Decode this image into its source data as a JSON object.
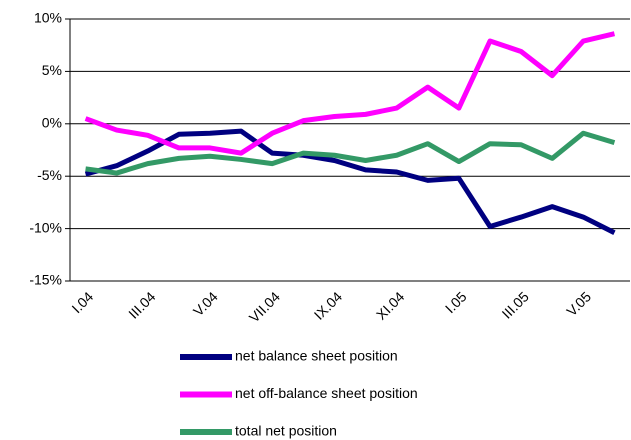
{
  "chart_data": {
    "type": "line",
    "categories": [
      "I.04",
      null,
      "III.04",
      null,
      "V.04",
      null,
      "VII.04",
      null,
      "IX.04",
      null,
      "XI.04",
      null,
      "I.05",
      null,
      "III.05",
      null,
      "V.05",
      null
    ],
    "series": [
      {
        "name": "net balance sheet position",
        "color": "#000080",
        "values": [
          -4.8,
          -4.0,
          -2.6,
          -1.0,
          -0.9,
          -0.7,
          -2.8,
          -3.0,
          -3.5,
          -4.4,
          -4.6,
          -5.4,
          -5.2,
          -9.8,
          -8.9,
          -7.9,
          -8.9,
          -10.4
        ]
      },
      {
        "name": "net off-balance sheet position",
        "color": "#ff00ff",
        "values": [
          0.5,
          -0.6,
          -1.1,
          -2.3,
          -2.3,
          -2.8,
          -0.9,
          0.3,
          0.7,
          0.9,
          1.5,
          3.5,
          1.5,
          7.9,
          6.9,
          4.6,
          7.9,
          8.6
        ]
      },
      {
        "name": "total net position",
        "color": "#339966",
        "values": [
          -4.3,
          -4.7,
          -3.8,
          -3.3,
          -3.1,
          -3.4,
          -3.8,
          -2.8,
          -3.0,
          -3.5,
          -3.0,
          -1.9,
          -3.6,
          -1.9,
          -2.0,
          -3.3,
          -0.9,
          -1.8
        ]
      }
    ],
    "ylim": [
      -15,
      10
    ],
    "yticks": [
      {
        "value": -15,
        "label": "-15%"
      },
      {
        "value": -10,
        "label": "-10%"
      },
      {
        "value": -5,
        "label": "-5%"
      },
      {
        "value": 0,
        "label": "0%"
      },
      {
        "value": 5,
        "label": "5%"
      },
      {
        "value": 10,
        "label": "10%"
      }
    ],
    "grid": true,
    "legend": "bottom"
  }
}
